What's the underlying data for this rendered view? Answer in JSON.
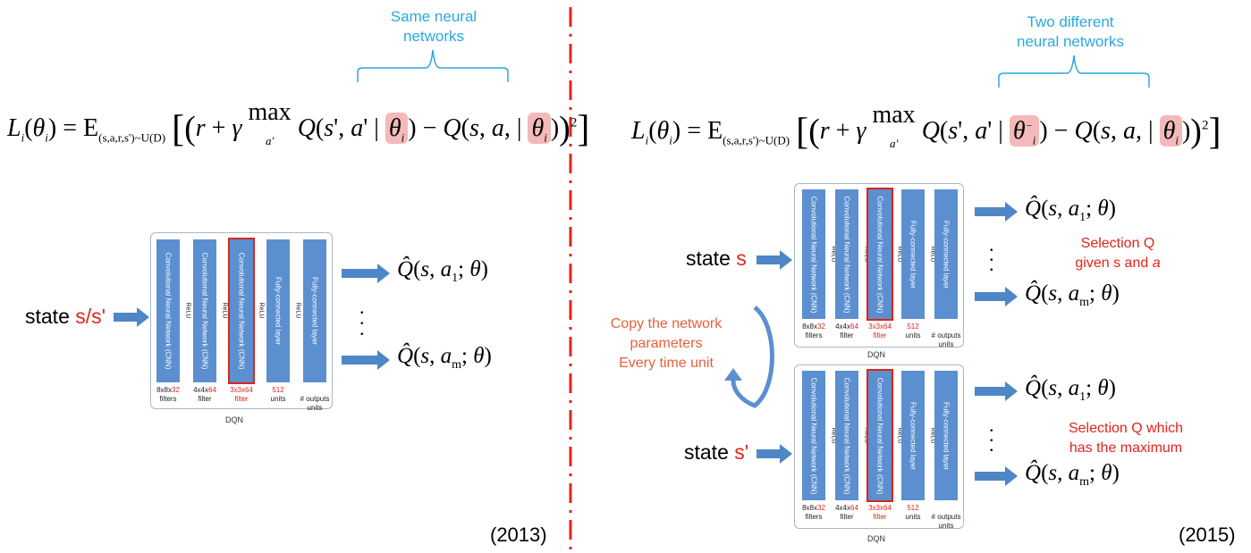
{
  "left": {
    "annotation": [
      "Same neural",
      "networks"
    ],
    "formula": {
      "lhs": "L",
      "expectation_sub": "(s,a,r,s')~U(D)",
      "max_sub": "a'"
    },
    "state_label": "state ",
    "state_var": "s/s'",
    "year": "(2013)"
  },
  "right": {
    "annotation": [
      "Two different",
      "neural networks"
    ],
    "state_top_label": "state ",
    "state_top_var": "s",
    "state_bottom_label": "state ",
    "state_bottom_var": "s'",
    "copy_note": [
      "Copy the network",
      "parameters",
      "Every time unit"
    ],
    "selection_top": [
      "Selection Q",
      "given s  and "
    ],
    "selection_top_italic": "a",
    "selection_bottom": [
      "Selection Q which",
      "has the maximum"
    ],
    "year": "(2015)"
  },
  "dqn": {
    "label": "DQN",
    "layers": [
      {
        "name": "Convolutional Neural Network (CNN)",
        "cap_pre": "8x8x",
        "cap_hi": "32",
        "cap_post": "filters"
      },
      {
        "name": "Convolutional Neural Network (CNN)",
        "cap_pre": "4x4x",
        "cap_hi": "64",
        "cap_post": "filter"
      },
      {
        "name": "Convolutional Neural Network (CNN)",
        "cap_pre": "",
        "cap_hi": "3x3x64",
        "cap_post": "filter",
        "selected": true
      },
      {
        "name": "Fully-connected layer",
        "cap_pre": "",
        "cap_hi": "512",
        "cap_post": "units"
      },
      {
        "name": "Fully-connected layer",
        "cap_pre": "",
        "cap_hi": "",
        "cap_post": "# outputs units"
      }
    ],
    "relu": "ReLU"
  },
  "colors": {
    "accent": "#2aa8e0",
    "red": "#e3241b",
    "bar": "#5b8fd0",
    "arrow": "#4f86c6",
    "orange": "#e8603c"
  }
}
